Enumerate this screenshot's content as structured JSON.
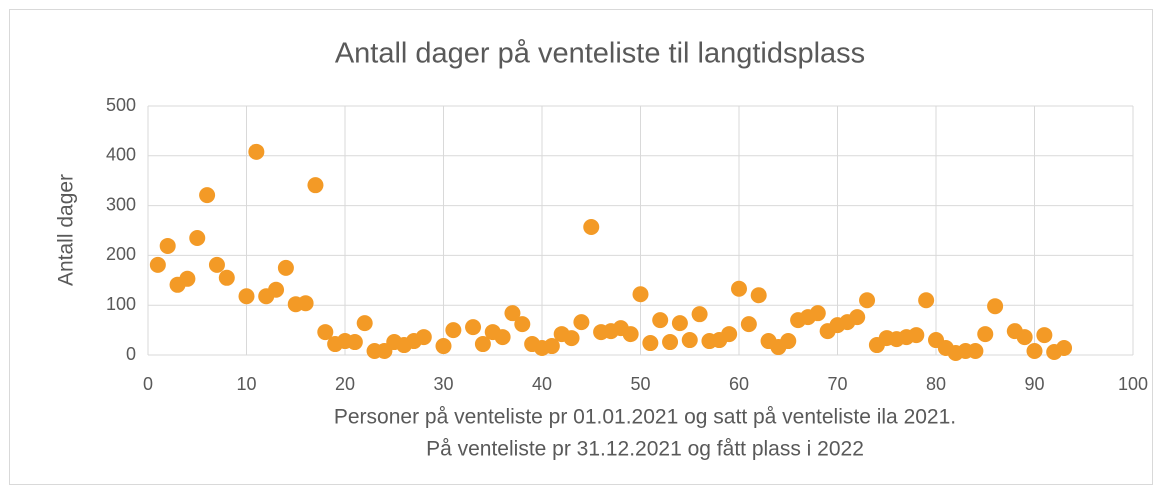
{
  "chart_data": {
    "type": "scatter",
    "title": "Antall dager på venteliste til langtidsplass",
    "ylabel": "Antall dager",
    "xlabel": [
      "Personer på venteliste pr 01.01.2021 og satt på venteliste ila 2021.",
      "På venteliste pr 31.12.2021 og fått plass i 2022"
    ],
    "color": "#f39a26",
    "grid": true,
    "xlim": [
      0,
      100
    ],
    "xticks": [
      0,
      10,
      20,
      30,
      40,
      50,
      60,
      70,
      80,
      90,
      100
    ],
    "ylim": [
      0,
      500
    ],
    "yticks": [
      0,
      100,
      200,
      300,
      400,
      500
    ],
    "x": [
      1,
      2,
      3,
      4,
      5,
      6,
      7,
      8,
      10,
      11,
      12,
      13,
      14,
      15,
      16,
      17,
      18,
      19,
      20,
      21,
      22,
      23,
      24,
      25,
      26,
      27,
      28,
      30,
      31,
      33,
      34,
      35,
      36,
      37,
      38,
      39,
      40,
      41,
      42,
      43,
      44,
      45,
      46,
      47,
      48,
      49,
      50,
      51,
      52,
      53,
      54,
      55,
      56,
      57,
      58,
      59,
      60,
      61,
      62,
      63,
      64,
      65,
      66,
      67,
      68,
      69,
      70,
      71,
      72,
      73,
      74,
      75,
      76,
      77,
      78,
      79,
      80,
      81,
      82,
      83,
      84,
      85,
      86,
      88,
      89,
      90,
      91,
      92,
      93
    ],
    "values": [
      181,
      219,
      141,
      153,
      235,
      321,
      181,
      155,
      118,
      408,
      118,
      131,
      175,
      102,
      104,
      341,
      46,
      22,
      28,
      26,
      64,
      8,
      8,
      26,
      20,
      28,
      36,
      18,
      50,
      56,
      22,
      46,
      36,
      84,
      62,
      22,
      14,
      18,
      42,
      34,
      66,
      257,
      46,
      48,
      54,
      42,
      122,
      24,
      70,
      26,
      64,
      30,
      82,
      28,
      30,
      42,
      133,
      62,
      120,
      28,
      16,
      28,
      70,
      76,
      84,
      48,
      60,
      66,
      76,
      110,
      20,
      34,
      32,
      36,
      40,
      110,
      30,
      14,
      4,
      8,
      8,
      42,
      98,
      48,
      36,
      8,
      40,
      6,
      14
    ]
  }
}
